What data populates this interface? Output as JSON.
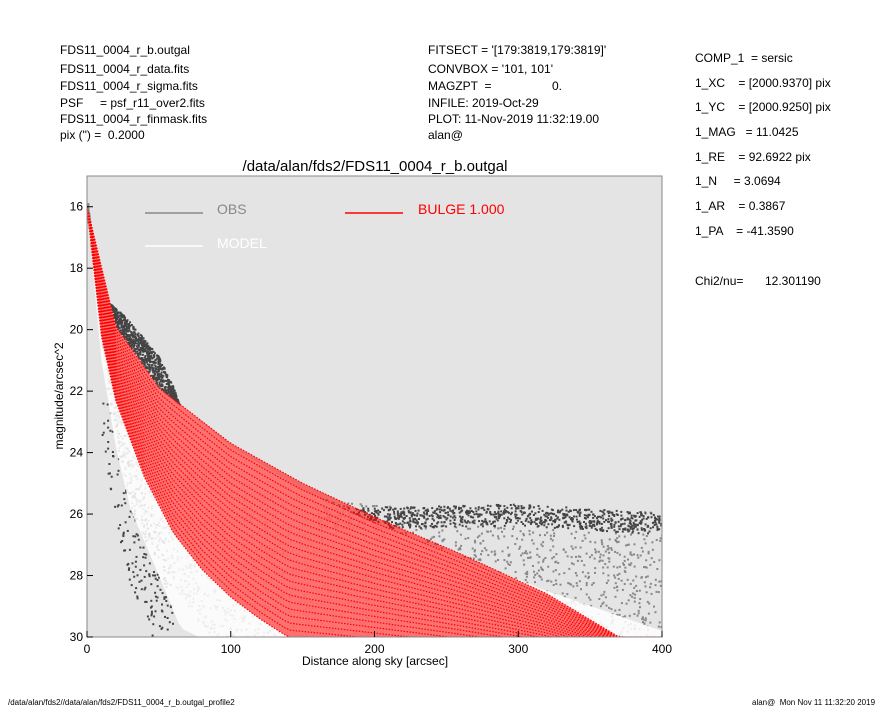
{
  "header_left": [
    "FDS11_0004_r_b.outgal",
    "FDS11_0004_r_data.fits",
    "FDS11_0004_r_sigma.fits",
    "PSF     = psf_r11_over2.fits",
    "FDS11_0004_r_finmask.fits",
    "pix (\") =  0.2000"
  ],
  "header_mid": [
    "FITSECT = '[179:3819,179:3819]'",
    "CONVBOX = '101, 101'",
    "MAGZPT  =",
    "INFILE: 2019-Oct-29",
    "PLOT: 11-Nov-2019 11:32:19.00",
    "alan@"
  ],
  "magzpt_value": "0.",
  "params": [
    "COMP_1  = sersic",
    "1_XC    = [2000.9370] pix",
    "1_YC    = [2000.9250] pix",
    "1_MAG   = 11.0425",
    "1_RE    = 92.6922 pix",
    "1_N     = 3.0694",
    "1_AR    = 0.3867",
    "1_PA    = -41.3590"
  ],
  "chi2_label": "Chi2/nu=",
  "chi2_value": "12.301190",
  "footer_left": "/data/alan/fds2//data/alan/fds2/FDS11_0004_r_b.outgal_profile2",
  "footer_right": "alan@  Mon Nov 11 11:32:20 2019",
  "colors": {
    "plot_bg": "#e4e4e4",
    "obs": "#888888",
    "obs_dark": "#444444",
    "model": "#ffffff",
    "bulge": "#ff0000"
  },
  "chart_data": {
    "type": "scatter",
    "title": "/data/alan/fds2/FDS11_0004_r_b.outgal",
    "xlabel": "Distance along sky [arcsec]",
    "ylabel": "magnitude/arcsec^2",
    "xlim": [
      0,
      400
    ],
    "ylim": [
      30,
      15
    ],
    "y_inverted": true,
    "x_ticks": [
      "0",
      "100",
      "200",
      "300",
      "400"
    ],
    "y_ticks": [
      "16",
      "18",
      "20",
      "22",
      "24",
      "26",
      "28",
      "30"
    ],
    "x_tick_values": [
      0,
      100,
      200,
      300,
      400
    ],
    "y_tick_values": [
      16,
      18,
      20,
      22,
      24,
      26,
      28,
      30
    ],
    "legend": [
      {
        "name": "OBS",
        "color": "#888888"
      },
      {
        "name": "MODEL",
        "color": "#ffffff"
      },
      {
        "name": "BULGE  1.000",
        "color": "#ff0000"
      }
    ],
    "series": [
      {
        "name": "OBS",
        "description_points": "dense scatter cloud",
        "upper_envelope": [
          [
            0,
            15.8
          ],
          [
            5,
            17.8
          ],
          [
            12,
            19.0
          ],
          [
            25,
            19.5
          ],
          [
            40,
            20.3
          ],
          [
            50,
            20.9
          ],
          [
            60,
            21.9
          ],
          [
            70,
            23.3
          ],
          [
            80,
            24.3
          ],
          [
            120,
            25.2
          ],
          [
            200,
            25.7
          ],
          [
            300,
            25.8
          ],
          [
            400,
            25.9
          ]
        ],
        "lower_envelope": [
          [
            0,
            16.3
          ],
          [
            10,
            20.5
          ],
          [
            20,
            23.5
          ],
          [
            30,
            26.0
          ],
          [
            50,
            27.5
          ],
          [
            70,
            29.0
          ],
          [
            80,
            30.0
          ]
        ],
        "sky_band": [
          [
            200,
            26.1
          ],
          [
            300,
            26.0
          ],
          [
            400,
            26.3
          ]
        ]
      },
      {
        "name": "MODEL",
        "upper_envelope": [
          [
            0,
            16.0
          ],
          [
            20,
            19.9
          ],
          [
            50,
            21.9
          ],
          [
            100,
            23.8
          ],
          [
            150,
            25.2
          ],
          [
            200,
            26.3
          ],
          [
            260,
            27.4
          ],
          [
            320,
            28.5
          ],
          [
            400,
            29.8
          ]
        ],
        "lower_envelope": [
          [
            0,
            16.0
          ],
          [
            10,
            21.0
          ],
          [
            20,
            23.8
          ],
          [
            30,
            25.8
          ],
          [
            50,
            28.0
          ],
          [
            65,
            29.7
          ]
        ]
      },
      {
        "name": "BULGE  1.000",
        "upper_envelope": [
          [
            0,
            16.0
          ],
          [
            20,
            19.9
          ],
          [
            50,
            21.9
          ],
          [
            100,
            23.7
          ],
          [
            150,
            25.0
          ],
          [
            200,
            26.1
          ],
          [
            260,
            27.3
          ],
          [
            320,
            28.6
          ],
          [
            370,
            30.0
          ]
        ],
        "lower_envelope": [
          [
            0,
            16.0
          ],
          [
            10,
            20.2
          ],
          [
            20,
            22.3
          ],
          [
            40,
            24.8
          ],
          [
            60,
            26.6
          ],
          [
            80,
            27.8
          ],
          [
            100,
            28.7
          ],
          [
            120,
            29.4
          ],
          [
            140,
            30.0
          ]
        ]
      }
    ]
  }
}
